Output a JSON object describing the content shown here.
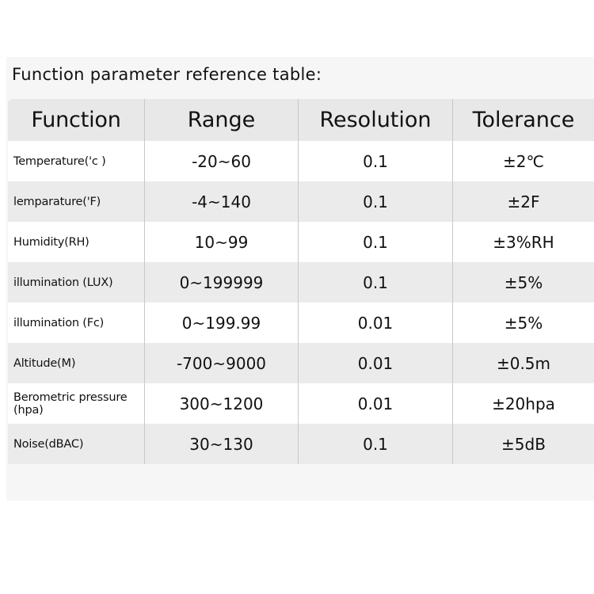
{
  "title": "Function parameter reference table:",
  "table": {
    "headers": [
      "Function",
      "Range",
      "Resolution",
      "Tolerance"
    ],
    "rows": [
      [
        "Temperature('c )",
        "-20~60",
        "0.1",
        "±2℃"
      ],
      [
        "lemparature('F)",
        "-4~140",
        "0.1",
        "±2F"
      ],
      [
        "Humidity(RH)",
        "10~99",
        "0.1",
        "±3%RH"
      ],
      [
        "illumination (LUX)",
        "0~199999",
        "0.1",
        "±5%"
      ],
      [
        "illumination (Fc)",
        "0~199.99",
        "0.01",
        "±5%"
      ],
      [
        "Altitude(M)",
        "-700~9000",
        "0.01",
        "±0.5m"
      ],
      [
        "Berometric pressure (hpa)",
        "300~1200",
        "0.01",
        "±20hpa"
      ],
      [
        "Noise(dBAC)",
        "30~130",
        "0.1",
        "±5dB"
      ]
    ]
  }
}
